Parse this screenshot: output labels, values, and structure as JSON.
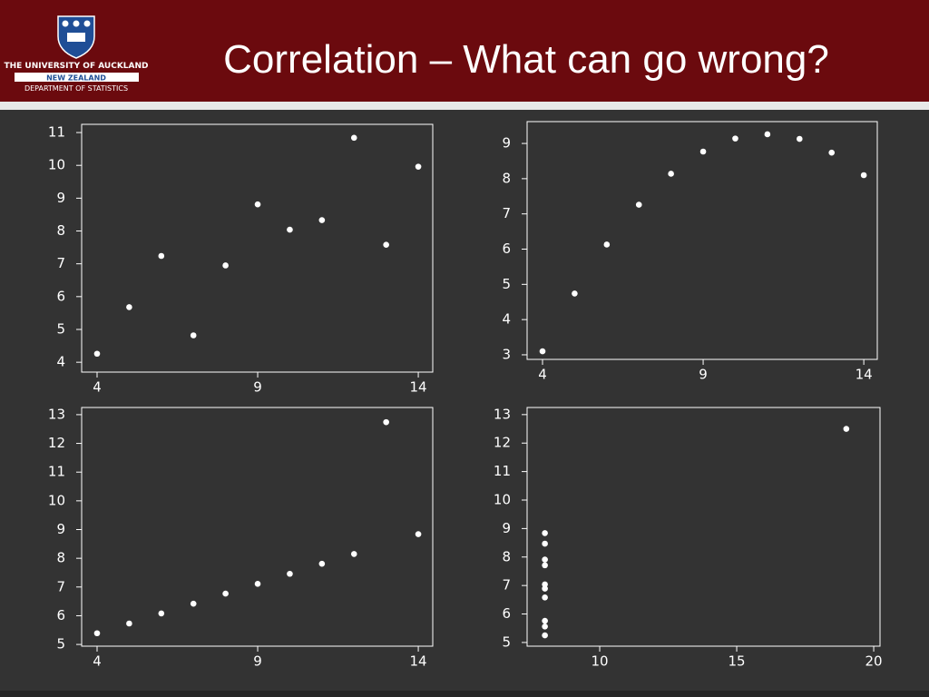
{
  "header": {
    "title": "Correlation – What can go wrong?",
    "logo_lines": [
      "THE UNIVERSITY OF AUCKLAND",
      "NEW ZEALAND",
      "DEPARTMENT OF STATISTICS"
    ]
  },
  "chart_data": [
    {
      "type": "scatter",
      "color": "#ffffff",
      "x": [
        10,
        8,
        13,
        9,
        11,
        14,
        6,
        4,
        12,
        7,
        5
      ],
      "values": [
        8.04,
        6.95,
        7.58,
        8.81,
        8.33,
        9.96,
        7.24,
        4.26,
        10.84,
        4.82,
        5.68
      ],
      "xlim": [
        3.52,
        14.45
      ],
      "ylim": [
        3.7,
        11.25
      ],
      "xticks": [
        4,
        9,
        14
      ],
      "yticks": [
        4,
        5,
        6,
        7,
        8,
        9,
        10,
        11
      ]
    },
    {
      "type": "scatter",
      "color": "#ffffff",
      "x": [
        10,
        8,
        13,
        9,
        11,
        14,
        6,
        4,
        12,
        7,
        5
      ],
      "values": [
        9.14,
        8.14,
        8.74,
        8.77,
        9.26,
        8.1,
        6.13,
        3.1,
        9.13,
        7.26,
        4.74
      ],
      "xlim": [
        3.52,
        14.42
      ],
      "ylim": [
        2.87,
        9.62
      ],
      "xticks": [
        4,
        9,
        14
      ],
      "yticks": [
        3,
        4,
        5,
        6,
        7,
        8,
        9
      ]
    },
    {
      "type": "scatter",
      "color": "#ffffff",
      "x": [
        10,
        8,
        13,
        9,
        11,
        14,
        6,
        4,
        12,
        7,
        5
      ],
      "values": [
        7.46,
        6.77,
        12.74,
        7.11,
        7.81,
        8.84,
        6.08,
        5.39,
        8.15,
        6.42,
        5.73
      ],
      "xlim": [
        3.52,
        14.45
      ],
      "ylim": [
        4.94,
        13.25
      ],
      "xticks": [
        4,
        9,
        14
      ],
      "yticks": [
        5,
        6,
        7,
        8,
        9,
        10,
        11,
        12,
        13
      ]
    },
    {
      "type": "scatter",
      "color": "#ffffff",
      "x": [
        8,
        8,
        8,
        8,
        8,
        8,
        8,
        19,
        8,
        8,
        8
      ],
      "values": [
        6.58,
        5.76,
        7.71,
        8.84,
        8.47,
        7.04,
        5.25,
        12.5,
        5.56,
        7.91,
        6.89
      ],
      "xlim": [
        7.35,
        20.23
      ],
      "ylim": [
        4.87,
        13.25
      ],
      "xticks": [
        10,
        15,
        20
      ],
      "yticks": [
        5,
        6,
        7,
        8,
        9,
        10,
        11,
        12,
        13
      ]
    }
  ]
}
